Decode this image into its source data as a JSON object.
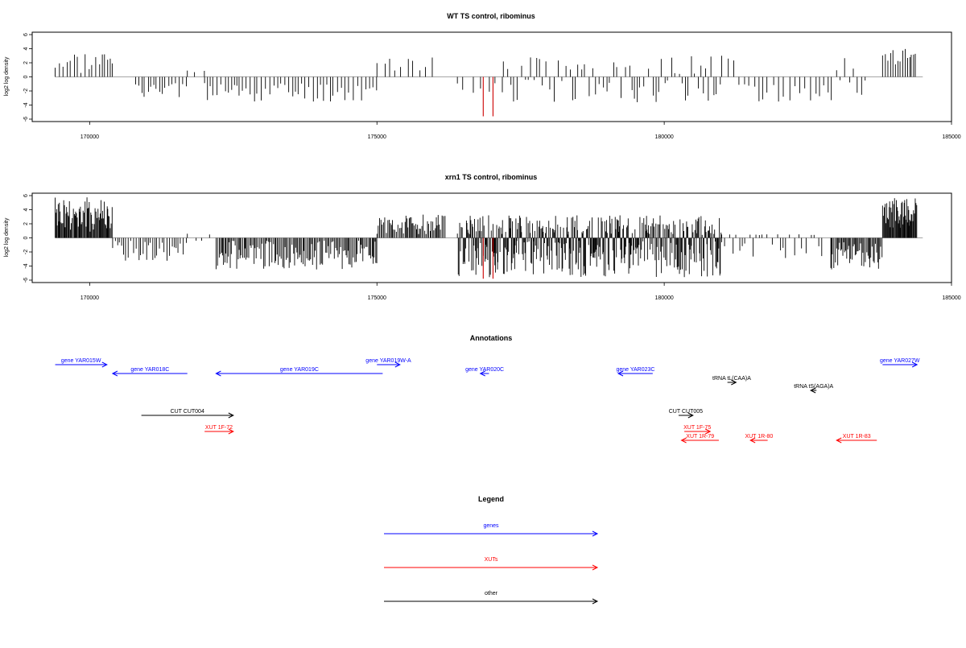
{
  "colors": {
    "gene": "#0000ff",
    "xut": "#ff0000",
    "other": "#000000",
    "axis": "#000000",
    "bar": "#000000",
    "highlight": "#cc0000"
  },
  "chart_data": [
    {
      "id": "wt",
      "type": "bar",
      "title": "WT TS control, ribominus",
      "ylabel": "log2 log density",
      "ylim": [
        -6,
        6
      ],
      "yticks": [
        -6,
        -4,
        -2,
        0,
        2,
        4,
        6
      ],
      "xlim": [
        169400,
        184500
      ],
      "xticks": [
        170000,
        175000,
        180000,
        185000
      ],
      "xtick_labels": [
        "170000",
        "175000",
        "180000",
        "185000"
      ],
      "highlight_bars": [
        [
          176850,
          -5.6
        ],
        [
          177020,
          -5.6
        ]
      ],
      "regions": [
        {
          "start": 169400,
          "end": 170400,
          "lo": 0.5,
          "hi": 4.2,
          "step": 55,
          "seed": 3
        },
        {
          "start": 170800,
          "end": 171700,
          "lo": -3.2,
          "hi": -0.8,
          "step": 55,
          "seed": 5
        },
        {
          "start": 171700,
          "end": 172000,
          "lo": 0.5,
          "hi": 1.2,
          "step": 180,
          "seed": 7
        },
        {
          "start": 172000,
          "end": 175000,
          "lo": -3.6,
          "hi": -0.6,
          "step": 60,
          "seed": 11
        },
        {
          "start": 175000,
          "end": 176000,
          "lo": 0.8,
          "hi": 2.8,
          "step": 110,
          "seed": 13
        },
        {
          "start": 176400,
          "end": 177200,
          "lo": -2.5,
          "hi": -0.8,
          "step": 140,
          "seed": 17
        },
        {
          "start": 177200,
          "end": 181000,
          "lo": -3.6,
          "hi": 3.1,
          "step": 60,
          "seed": 19
        },
        {
          "start": 181000,
          "end": 181300,
          "lo": 1.5,
          "hi": 3.1,
          "step": 90,
          "seed": 23
        },
        {
          "start": 181300,
          "end": 183000,
          "lo": -3.5,
          "hi": -1.0,
          "step": 90,
          "seed": 29
        },
        {
          "start": 183000,
          "end": 183500,
          "lo": -3.0,
          "hi": 3.0,
          "step": 65,
          "seed": 31
        },
        {
          "start": 183800,
          "end": 184400,
          "lo": 1.0,
          "hi": 4.2,
          "step": 35,
          "seed": 37
        }
      ]
    },
    {
      "id": "xrn1",
      "type": "bar",
      "title": "xrn1 TS control, ribominus",
      "ylabel": "log2 log density",
      "ylim": [
        -6,
        6
      ],
      "yticks": [
        -6,
        -4,
        -2,
        0,
        2,
        4,
        6
      ],
      "xlim": [
        169400,
        184500
      ],
      "xticks": [
        170000,
        175000,
        180000,
        185000
      ],
      "xtick_labels": [
        "170000",
        "175000",
        "180000",
        "185000"
      ],
      "highlight_bars": [
        [
          176850,
          -5.8
        ],
        [
          177020,
          -5.8
        ]
      ],
      "regions": [
        {
          "start": 169400,
          "end": 170400,
          "lo": 0.8,
          "hi": 5.8,
          "step": 14,
          "seed": 41
        },
        {
          "start": 170400,
          "end": 171700,
          "lo": -3.4,
          "hi": -0.4,
          "step": 40,
          "seed": 43
        },
        {
          "start": 171700,
          "end": 172200,
          "lo": -0.4,
          "hi": 0.6,
          "step": 120,
          "seed": 47
        },
        {
          "start": 172200,
          "end": 175000,
          "lo": -4.5,
          "hi": -0.4,
          "step": 22,
          "seed": 53
        },
        {
          "start": 175000,
          "end": 176200,
          "lo": 0.5,
          "hi": 3.4,
          "step": 22,
          "seed": 59
        },
        {
          "start": 176400,
          "end": 181000,
          "lo": -5.6,
          "hi": 3.2,
          "step": 12,
          "seed": 61
        },
        {
          "start": 181000,
          "end": 182800,
          "lo": -3.0,
          "hi": 0.5,
          "step": 70,
          "seed": 67
        },
        {
          "start": 182900,
          "end": 183800,
          "lo": -4.5,
          "hi": -0.6,
          "step": 20,
          "seed": 71
        },
        {
          "start": 183800,
          "end": 184400,
          "lo": 1.0,
          "hi": 5.9,
          "step": 12,
          "seed": 73
        }
      ]
    }
  ],
  "annotations": {
    "title": "Annotations",
    "xlim": [
      169400,
      184500
    ],
    "features": [
      {
        "label": "gene YAR015W",
        "kind": "gene",
        "start": 169400,
        "end": 170300,
        "strand": "+",
        "row": 0
      },
      {
        "label": "gene YAR018C",
        "kind": "gene",
        "start": 170400,
        "end": 171700,
        "strand": "-",
        "row": 1
      },
      {
        "label": "gene YAR019C",
        "kind": "gene",
        "start": 172200,
        "end": 175100,
        "strand": "-",
        "row": 1
      },
      {
        "label": "gene YAR019W-A",
        "kind": "gene",
        "start": 175000,
        "end": 175400,
        "strand": "+",
        "row": 0
      },
      {
        "label": "gene YAR020C",
        "kind": "gene",
        "start": 176800,
        "end": 176950,
        "strand": "-",
        "row": 1
      },
      {
        "label": "gene YAR023C",
        "kind": "gene",
        "start": 179200,
        "end": 179800,
        "strand": "-",
        "row": 1
      },
      {
        "label": "tRNA tL(CAA)A",
        "kind": "other",
        "start": 181100,
        "end": 181250,
        "strand": "+",
        "row": 2
      },
      {
        "label": "tRNA tS(AGA)A",
        "kind": "other",
        "start": 182550,
        "end": 182650,
        "strand": "-",
        "row": 3
      },
      {
        "label": "gene YAR027W",
        "kind": "gene",
        "start": 183800,
        "end": 184400,
        "strand": "+",
        "row": 0
      },
      {
        "label": "CUT CUT004",
        "kind": "other",
        "start": 170900,
        "end": 172500,
        "strand": "+",
        "row": 4
      },
      {
        "label": "CUT CUT005",
        "kind": "other",
        "start": 180250,
        "end": 180500,
        "strand": "+",
        "row": 4
      },
      {
        "label": "XUT 1F-72",
        "kind": "xut",
        "start": 172000,
        "end": 172500,
        "strand": "+",
        "row": 5
      },
      {
        "label": "XUT 1F-75",
        "kind": "xut",
        "start": 180350,
        "end": 180800,
        "strand": "+",
        "row": 5
      },
      {
        "label": "XUT 1R-79",
        "kind": "xut",
        "start": 180300,
        "end": 180950,
        "strand": "-",
        "row": 6
      },
      {
        "label": "XUT 1R-80",
        "kind": "xut",
        "start": 181500,
        "end": 181800,
        "strand": "-",
        "row": 6
      },
      {
        "label": "XUT 1R-83",
        "kind": "xut",
        "start": 183000,
        "end": 183700,
        "strand": "-",
        "row": 6
      }
    ]
  },
  "legend": {
    "title": "Legend",
    "items": [
      {
        "label": "genes",
        "kind": "gene"
      },
      {
        "label": "XUTs",
        "kind": "xut"
      },
      {
        "label": "other",
        "kind": "other"
      }
    ]
  }
}
